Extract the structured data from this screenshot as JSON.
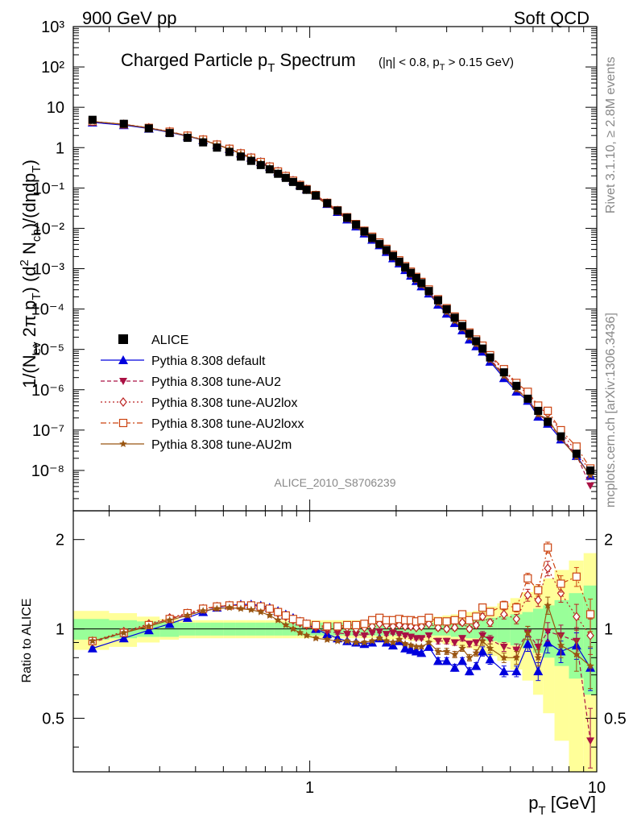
{
  "header": {
    "left": "900 GeV pp",
    "right": "Soft QCD"
  },
  "title": {
    "main": "Charged Particle p",
    "main_sub": "T",
    "main_tail": " Spectrum",
    "cuts": "(|η| < 0.8, p",
    "cuts_sub": "T",
    "cuts_tail": " > 0.15 GeV)"
  },
  "side_labels": {
    "rivet": "Rivet 3.1.10, ≥ 2.8M events",
    "mcplots": "mcplots.cern.ch [arXiv:1306.3436]"
  },
  "analysis_id": "ALICE_2010_S8706239",
  "axes": {
    "xlabel": "p",
    "xlabel_sub": "T",
    "xlabel_tail": " [GeV]",
    "ratio_ylabel": "Ratio to ALICE",
    "x_tick_labels": [
      "1",
      "10"
    ],
    "y_tick_labels": [
      "10⁻⁸",
      "10⁻⁷",
      "10⁻⁶",
      "10⁻⁵",
      "10⁻⁴",
      "10⁻³",
      "10⁻²",
      "10⁻¹",
      "1",
      "10",
      "10²",
      "10³"
    ],
    "ratio_tick_labels": [
      "0.5",
      "1",
      "2"
    ]
  },
  "legend": [
    {
      "label": "ALICE",
      "color": "#000000",
      "marker": "square"
    },
    {
      "label": "Pythia 8.308 default",
      "color": "#0000dd",
      "marker": "triangle-up",
      "dash": ""
    },
    {
      "label": "Pythia 8.308 tune-AU2",
      "color": "#aa1144",
      "marker": "triangle-down",
      "dash": "5,3"
    },
    {
      "label": "Pythia 8.308 tune-AU2lox",
      "color": "#bb2222",
      "marker": "diamond-open",
      "dash": "2,3"
    },
    {
      "label": "Pythia 8.308 tune-AU2loxx",
      "color": "#cc4411",
      "marker": "square-open",
      "dash": "7,3,2,3"
    },
    {
      "label": "Pythia 8.308 tune-AU2m",
      "color": "#995511",
      "marker": "star",
      "dash": ""
    }
  ],
  "chart_data": {
    "type": "scatter",
    "x_scale": "log",
    "y_scale": "log",
    "xlim": [
      0.15,
      10
    ],
    "ylim": [
      1e-09,
      1000.0
    ],
    "ratio_ylim": [
      0.33,
      2.5
    ],
    "grid": false,
    "legend_position": "lower-left",
    "x": [
      0.175,
      0.225,
      0.275,
      0.325,
      0.375,
      0.425,
      0.475,
      0.525,
      0.575,
      0.625,
      0.675,
      0.725,
      0.775,
      0.825,
      0.875,
      0.925,
      0.975,
      1.05,
      1.15,
      1.25,
      1.35,
      1.45,
      1.55,
      1.65,
      1.75,
      1.85,
      1.95,
      2.05,
      2.15,
      2.25,
      2.35,
      2.45,
      2.6,
      2.8,
      3.0,
      3.2,
      3.4,
      3.6,
      3.8,
      4.0,
      4.25,
      4.75,
      5.25,
      5.75,
      6.25,
      6.75,
      7.5,
      8.5,
      9.5
    ],
    "series": [
      {
        "name": "ALICE",
        "values": [
          4.9,
          3.9,
          3.0,
          2.3,
          1.75,
          1.35,
          1.0,
          0.78,
          0.6,
          0.47,
          0.37,
          0.29,
          0.225,
          0.178,
          0.141,
          0.112,
          0.09,
          0.065,
          0.042,
          0.0275,
          0.0183,
          0.0124,
          0.0084,
          0.0058,
          0.0041,
          0.0029,
          0.00206,
          0.00149,
          0.00108,
          0.00079,
          0.00059,
          0.00044,
          0.00028,
          0.000165,
          9.9e-05,
          6.1e-05,
          3.8e-05,
          2.45e-05,
          1.6e-05,
          1.05e-05,
          6.3e-06,
          2.7e-06,
          1.25e-06,
          6e-07,
          3e-07,
          1.6e-07,
          7e-08,
          2.6e-08,
          1e-08
        ],
        "band_mc_stat": [
          0.08,
          0.07,
          0.06,
          0.06,
          0.05,
          0.05,
          0.05,
          0.05,
          0.05,
          0.05,
          0.05,
          0.05,
          0.05,
          0.05,
          0.05,
          0.05,
          0.05,
          0.05,
          0.05,
          0.05,
          0.05,
          0.05,
          0.05,
          0.05,
          0.05,
          0.05,
          0.05,
          0.05,
          0.05,
          0.05,
          0.05,
          0.05,
          0.05,
          0.05,
          0.05,
          0.06,
          0.06,
          0.07,
          0.07,
          0.08,
          0.09,
          0.1,
          0.12,
          0.14,
          0.17,
          0.2,
          0.25,
          0.32,
          0.4
        ],
        "band_total": [
          0.15,
          0.13,
          0.1,
          0.08,
          0.07,
          0.07,
          0.07,
          0.07,
          0.07,
          0.07,
          0.07,
          0.07,
          0.07,
          0.07,
          0.07,
          0.07,
          0.07,
          0.07,
          0.07,
          0.07,
          0.07,
          0.07,
          0.07,
          0.07,
          0.07,
          0.08,
          0.08,
          0.08,
          0.08,
          0.09,
          0.09,
          0.09,
          0.1,
          0.1,
          0.11,
          0.12,
          0.13,
          0.14,
          0.15,
          0.17,
          0.19,
          0.22,
          0.27,
          0.33,
          0.4,
          0.48,
          0.58,
          0.7,
          0.8
        ]
      },
      {
        "name": "Pythia 8.308 default",
        "ratio": [
          0.86,
          0.93,
          0.99,
          1.04,
          1.09,
          1.14,
          1.18,
          1.2,
          1.21,
          1.21,
          1.2,
          1.18,
          1.15,
          1.12,
          1.09,
          1.06,
          1.04,
          1.0,
          0.96,
          0.93,
          0.91,
          0.9,
          0.89,
          0.9,
          0.93,
          0.9,
          0.88,
          0.91,
          0.86,
          0.85,
          0.84,
          0.83,
          0.87,
          0.78,
          0.78,
          0.74,
          0.78,
          0.72,
          0.75,
          0.84,
          0.79,
          0.72,
          0.72,
          0.89,
          0.72,
          0.9,
          0.84,
          0.88,
          0.74
        ],
        "ratio_err": [
          0.01,
          0.01,
          0.01,
          0.01,
          0.01,
          0.01,
          0.01,
          0.01,
          0.01,
          0.01,
          0.01,
          0.01,
          0.01,
          0.01,
          0.01,
          0.01,
          0.01,
          0.01,
          0.01,
          0.01,
          0.01,
          0.01,
          0.01,
          0.01,
          0.01,
          0.01,
          0.01,
          0.01,
          0.01,
          0.01,
          0.01,
          0.01,
          0.01,
          0.02,
          0.02,
          0.02,
          0.02,
          0.02,
          0.02,
          0.03,
          0.03,
          0.03,
          0.03,
          0.05,
          0.05,
          0.07,
          0.07,
          0.09,
          0.12
        ]
      },
      {
        "name": "Pythia 8.308 tune-AU2",
        "ratio": [
          0.9,
          0.97,
          1.03,
          1.08,
          1.12,
          1.16,
          1.19,
          1.2,
          1.2,
          1.2,
          1.19,
          1.17,
          1.14,
          1.1,
          1.07,
          1.04,
          1.02,
          1.0,
          0.98,
          0.97,
          0.96,
          0.96,
          0.95,
          0.97,
          0.98,
          0.96,
          0.97,
          0.96,
          0.95,
          0.94,
          0.93,
          0.93,
          0.95,
          0.91,
          0.91,
          0.9,
          0.93,
          0.89,
          0.9,
          0.95,
          0.92,
          0.87,
          0.85,
          0.97,
          0.87,
          0.98,
          0.95,
          0.91,
          0.42
        ],
        "ratio_err": [
          0.01,
          0.01,
          0.01,
          0.01,
          0.01,
          0.01,
          0.01,
          0.01,
          0.01,
          0.01,
          0.01,
          0.01,
          0.01,
          0.01,
          0.01,
          0.01,
          0.01,
          0.01,
          0.01,
          0.01,
          0.01,
          0.01,
          0.01,
          0.01,
          0.01,
          0.01,
          0.01,
          0.01,
          0.01,
          0.01,
          0.01,
          0.01,
          0.01,
          0.02,
          0.02,
          0.02,
          0.02,
          0.02,
          0.02,
          0.03,
          0.03,
          0.03,
          0.04,
          0.05,
          0.05,
          0.07,
          0.08,
          0.1,
          0.12
        ]
      },
      {
        "name": "Pythia 8.308 tune-AU2lox",
        "ratio": [
          0.91,
          0.98,
          1.04,
          1.09,
          1.13,
          1.17,
          1.19,
          1.2,
          1.2,
          1.19,
          1.18,
          1.16,
          1.13,
          1.1,
          1.07,
          1.05,
          1.03,
          1.02,
          1.01,
          1.01,
          1.01,
          1.0,
          1.01,
          1.02,
          1.04,
          1.03,
          1.02,
          1.03,
          1.02,
          1.02,
          1.01,
          1.02,
          1.04,
          1.01,
          1.0,
          1.01,
          1.05,
          1.0,
          1.03,
          1.1,
          1.05,
          1.12,
          1.08,
          1.3,
          1.25,
          1.6,
          1.32,
          1.1,
          0.95
        ],
        "ratio_err": [
          0.01,
          0.01,
          0.01,
          0.01,
          0.01,
          0.01,
          0.01,
          0.01,
          0.01,
          0.01,
          0.01,
          0.01,
          0.01,
          0.01,
          0.01,
          0.01,
          0.01,
          0.01,
          0.01,
          0.01,
          0.01,
          0.01,
          0.01,
          0.01,
          0.01,
          0.01,
          0.01,
          0.01,
          0.01,
          0.01,
          0.01,
          0.01,
          0.01,
          0.02,
          0.02,
          0.02,
          0.02,
          0.02,
          0.02,
          0.03,
          0.03,
          0.04,
          0.04,
          0.06,
          0.06,
          0.09,
          0.09,
          0.11,
          0.13
        ]
      },
      {
        "name": "Pythia 8.308 tune-AU2loxx",
        "ratio": [
          0.91,
          0.97,
          1.03,
          1.08,
          1.13,
          1.17,
          1.19,
          1.2,
          1.2,
          1.2,
          1.19,
          1.17,
          1.14,
          1.11,
          1.08,
          1.06,
          1.04,
          1.03,
          1.02,
          1.02,
          1.03,
          1.03,
          1.04,
          1.07,
          1.09,
          1.07,
          1.07,
          1.08,
          1.07,
          1.07,
          1.06,
          1.07,
          1.09,
          1.06,
          1.06,
          1.07,
          1.12,
          1.07,
          1.1,
          1.18,
          1.14,
          1.2,
          1.18,
          1.48,
          1.35,
          1.88,
          1.42,
          1.5,
          1.12
        ],
        "ratio_err": [
          0.01,
          0.01,
          0.01,
          0.01,
          0.01,
          0.01,
          0.01,
          0.01,
          0.01,
          0.01,
          0.01,
          0.01,
          0.01,
          0.01,
          0.01,
          0.01,
          0.01,
          0.01,
          0.01,
          0.01,
          0.01,
          0.01,
          0.01,
          0.01,
          0.01,
          0.01,
          0.01,
          0.01,
          0.01,
          0.01,
          0.01,
          0.01,
          0.01,
          0.02,
          0.02,
          0.02,
          0.02,
          0.02,
          0.02,
          0.03,
          0.03,
          0.04,
          0.04,
          0.06,
          0.06,
          0.08,
          0.09,
          0.11,
          0.14
        ]
      },
      {
        "name": "Pythia 8.308 tune-AU2m",
        "ratio": [
          0.91,
          0.97,
          1.02,
          1.07,
          1.11,
          1.15,
          1.17,
          1.18,
          1.17,
          1.16,
          1.14,
          1.11,
          1.07,
          1.03,
          1.0,
          0.97,
          0.95,
          0.93,
          0.92,
          0.91,
          0.91,
          0.9,
          0.9,
          0.91,
          0.93,
          0.91,
          0.9,
          0.92,
          0.89,
          0.88,
          0.87,
          0.87,
          0.9,
          0.84,
          0.84,
          0.82,
          0.86,
          0.8,
          0.83,
          0.91,
          0.86,
          0.8,
          0.8,
          0.97,
          0.8,
          1.2,
          0.88,
          0.82,
          0.75
        ],
        "ratio_err": [
          0.01,
          0.01,
          0.01,
          0.01,
          0.01,
          0.01,
          0.01,
          0.01,
          0.01,
          0.01,
          0.01,
          0.01,
          0.01,
          0.01,
          0.01,
          0.01,
          0.01,
          0.01,
          0.01,
          0.01,
          0.01,
          0.01,
          0.01,
          0.01,
          0.01,
          0.01,
          0.01,
          0.01,
          0.01,
          0.01,
          0.01,
          0.01,
          0.01,
          0.02,
          0.02,
          0.02,
          0.02,
          0.02,
          0.02,
          0.03,
          0.03,
          0.03,
          0.04,
          0.05,
          0.05,
          0.08,
          0.08,
          0.1,
          0.12
        ]
      }
    ]
  }
}
